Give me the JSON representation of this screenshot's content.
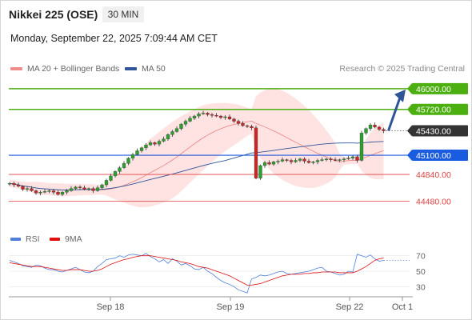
{
  "header": {
    "title": "Nikkei 225 (OSE)",
    "timeframe": "30 MIN",
    "datetime": "Monday, September 22, 2025 7:09:44 AM CET",
    "credit": "Research © 2025 Trading Central"
  },
  "legend": [
    {
      "label": "MA 20 + Bollinger Bands",
      "color": "#f08c8c"
    },
    {
      "label": "MA 50",
      "color": "#2f5597"
    }
  ],
  "rsi_legend": [
    {
      "label": "RSI",
      "color": "#4f7fd9"
    },
    {
      "label": "9MA",
      "color": "#e01010"
    }
  ],
  "chart_data": {
    "type": "candlestick",
    "x_ticks": [
      "Sep 18",
      "Sep 19",
      "Sep 22",
      "Oct 1"
    ],
    "ylim": [
      44300,
      46150
    ],
    "levels": [
      {
        "value": 46000,
        "label": "46000.00",
        "color": "#4caf10",
        "kind": "resistance"
      },
      {
        "value": 45720,
        "label": "45720.00",
        "color": "#4caf10",
        "kind": "resistance"
      },
      {
        "value": 45430,
        "label": "45430.00",
        "color": "#333333",
        "kind": "last"
      },
      {
        "value": 45100,
        "label": "45100.00",
        "color": "#1a5ce0",
        "kind": "pivot"
      },
      {
        "value": 44840,
        "label": "44840.00",
        "color": "#e04040",
        "kind": "support"
      },
      {
        "value": 44480,
        "label": "44480.00",
        "color": "#e04040",
        "kind": "support"
      }
    ],
    "close": [
      44720,
      44700,
      44680,
      44640,
      44650,
      44620,
      44590,
      44600,
      44610,
      44620,
      44600,
      44570,
      44600,
      44620,
      44650,
      44670,
      44660,
      44640,
      44650,
      44620,
      44660,
      44700,
      44760,
      44820,
      44880,
      44930,
      44990,
      45060,
      45110,
      45160,
      45200,
      45240,
      45270,
      45250,
      45290,
      45320,
      45380,
      45420,
      45460,
      45520,
      45560,
      45600,
      45630,
      45660,
      45670,
      45650,
      45640,
      45630,
      45610,
      45620,
      45590,
      45560,
      45530,
      45500,
      45490,
      45470,
      44790,
      44960,
      45000,
      44980,
      45010,
      45020,
      45040,
      45030,
      45010,
      45030,
      45050,
      45020,
      45000,
      45010,
      45030,
      45040,
      45050,
      45040,
      45030,
      45040,
      45050,
      45060,
      45080,
      45030,
      45400,
      45460,
      45510,
      45480,
      45450,
      45430
    ],
    "projection": {
      "from": 45430,
      "to": 46000
    },
    "rsi": {
      "ylim": [
        20,
        80
      ],
      "ticks": [
        70,
        50,
        30
      ],
      "rsi": [
        64,
        62,
        60,
        57,
        56,
        55,
        58,
        57,
        54,
        52,
        52,
        50,
        49,
        51,
        53,
        55,
        52,
        49,
        48,
        50,
        56,
        60,
        65,
        66,
        67,
        70,
        68,
        71,
        72,
        71,
        70,
        73,
        69,
        66,
        62,
        65,
        60,
        66,
        63,
        58,
        60,
        57,
        53,
        52,
        55,
        50,
        47,
        42,
        38,
        35,
        33,
        30,
        26,
        24,
        22,
        40,
        42,
        45,
        44,
        45,
        47,
        49,
        50,
        47,
        46,
        47,
        48,
        49,
        50,
        52,
        54,
        55,
        50,
        49,
        47,
        45,
        46,
        50,
        49,
        72,
        70,
        68,
        71,
        66,
        63,
        64
      ],
      "ma": [
        61,
        60,
        59,
        58,
        57,
        56,
        56,
        56,
        55,
        54,
        53,
        52,
        51,
        51,
        52,
        52,
        52,
        51,
        50,
        50,
        51,
        53,
        56,
        59,
        61,
        63,
        65,
        66,
        68,
        69,
        70,
        70,
        70,
        69,
        68,
        67,
        66,
        65,
        64,
        62,
        61,
        60,
        58,
        56,
        55,
        54,
        52,
        50,
        48,
        46,
        44,
        41,
        38,
        35,
        32,
        32,
        33,
        34,
        36,
        38,
        40,
        42,
        44,
        45,
        46,
        46,
        46,
        47,
        47,
        48,
        48,
        49,
        49,
        49,
        49,
        48,
        48,
        48,
        48,
        50,
        53,
        56,
        60,
        64,
        66,
        67
      ]
    }
  }
}
